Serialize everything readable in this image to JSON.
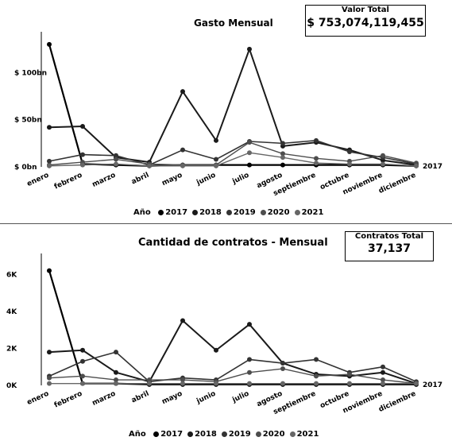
{
  "chart_data": [
    {
      "type": "line",
      "title": "Gasto Mensual",
      "kpi": {
        "label": "Valor Total",
        "value": "$ 753,074,119,455"
      },
      "categories": [
        "enero",
        "febrero",
        "marzo",
        "abril",
        "mayo",
        "junio",
        "julio",
        "agosto",
        "septiembre",
        "octubre",
        "noviembre",
        "diciembre"
      ],
      "ytick_labels": [
        "$ 0bn",
        "$ 50bn",
        "$ 100bn"
      ],
      "ytick_values": [
        0,
        50,
        100
      ],
      "ylim": [
        0,
        135
      ],
      "legend_title": "Año",
      "end_label": "2017",
      "series": [
        {
          "name": "2017",
          "values": [
            130,
            3,
            2,
            1,
            2,
            2,
            2,
            2,
            2,
            2,
            2,
            1
          ]
        },
        {
          "name": "2018",
          "values": [
            42,
            43,
            10,
            5,
            80,
            28,
            125,
            22,
            26,
            18,
            7,
            2
          ]
        },
        {
          "name": "2019",
          "values": [
            6,
            13,
            12,
            2,
            18,
            8,
            27,
            25,
            28,
            16,
            10,
            3
          ]
        },
        {
          "name": "2020",
          "values": [
            2,
            5,
            8,
            3,
            2,
            2,
            26,
            14,
            9,
            6,
            12,
            4
          ]
        },
        {
          "name": "2021",
          "values": [
            1,
            2,
            3,
            1,
            1,
            1,
            15,
            10,
            4,
            3,
            3,
            1
          ]
        }
      ]
    },
    {
      "type": "line",
      "title": "Cantidad de contratos - Mensual",
      "kpi": {
        "label": "Contratos Total",
        "value": "37,137"
      },
      "categories": [
        "enero",
        "febrero",
        "marzo",
        "abril",
        "mayo",
        "junio",
        "julio",
        "agosto",
        "septiembre",
        "octubre",
        "noviembre",
        "diciembre"
      ],
      "ytick_labels": [
        "0K",
        "2K",
        "4K",
        "6K"
      ],
      "ytick_values": [
        0,
        2,
        4,
        6
      ],
      "ylim": [
        0,
        6.7
      ],
      "legend_title": "Año",
      "end_label": "2017",
      "series": [
        {
          "name": "2017",
          "values": [
            6.2,
            0.1,
            0.1,
            0.05,
            0.05,
            0.05,
            0.05,
            0.05,
            0.05,
            0.05,
            0.05,
            0.05
          ]
        },
        {
          "name": "2018",
          "values": [
            1.8,
            1.9,
            0.7,
            0.2,
            3.5,
            1.9,
            3.3,
            1.2,
            0.6,
            0.5,
            0.7,
            0.1
          ]
        },
        {
          "name": "2019",
          "values": [
            0.5,
            1.3,
            1.8,
            0.2,
            0.4,
            0.3,
            1.4,
            1.2,
            1.4,
            0.7,
            1.0,
            0.2
          ]
        },
        {
          "name": "2020",
          "values": [
            0.4,
            0.5,
            0.3,
            0.3,
            0.3,
            0.2,
            0.7,
            0.9,
            0.5,
            0.6,
            0.3,
            0.1
          ]
        },
        {
          "name": "2021",
          "values": [
            0.1,
            0.1,
            0.1,
            0.1,
            0.1,
            0.1,
            0.1,
            0.1,
            0.1,
            0.1,
            0.1,
            0.1
          ]
        }
      ]
    }
  ]
}
